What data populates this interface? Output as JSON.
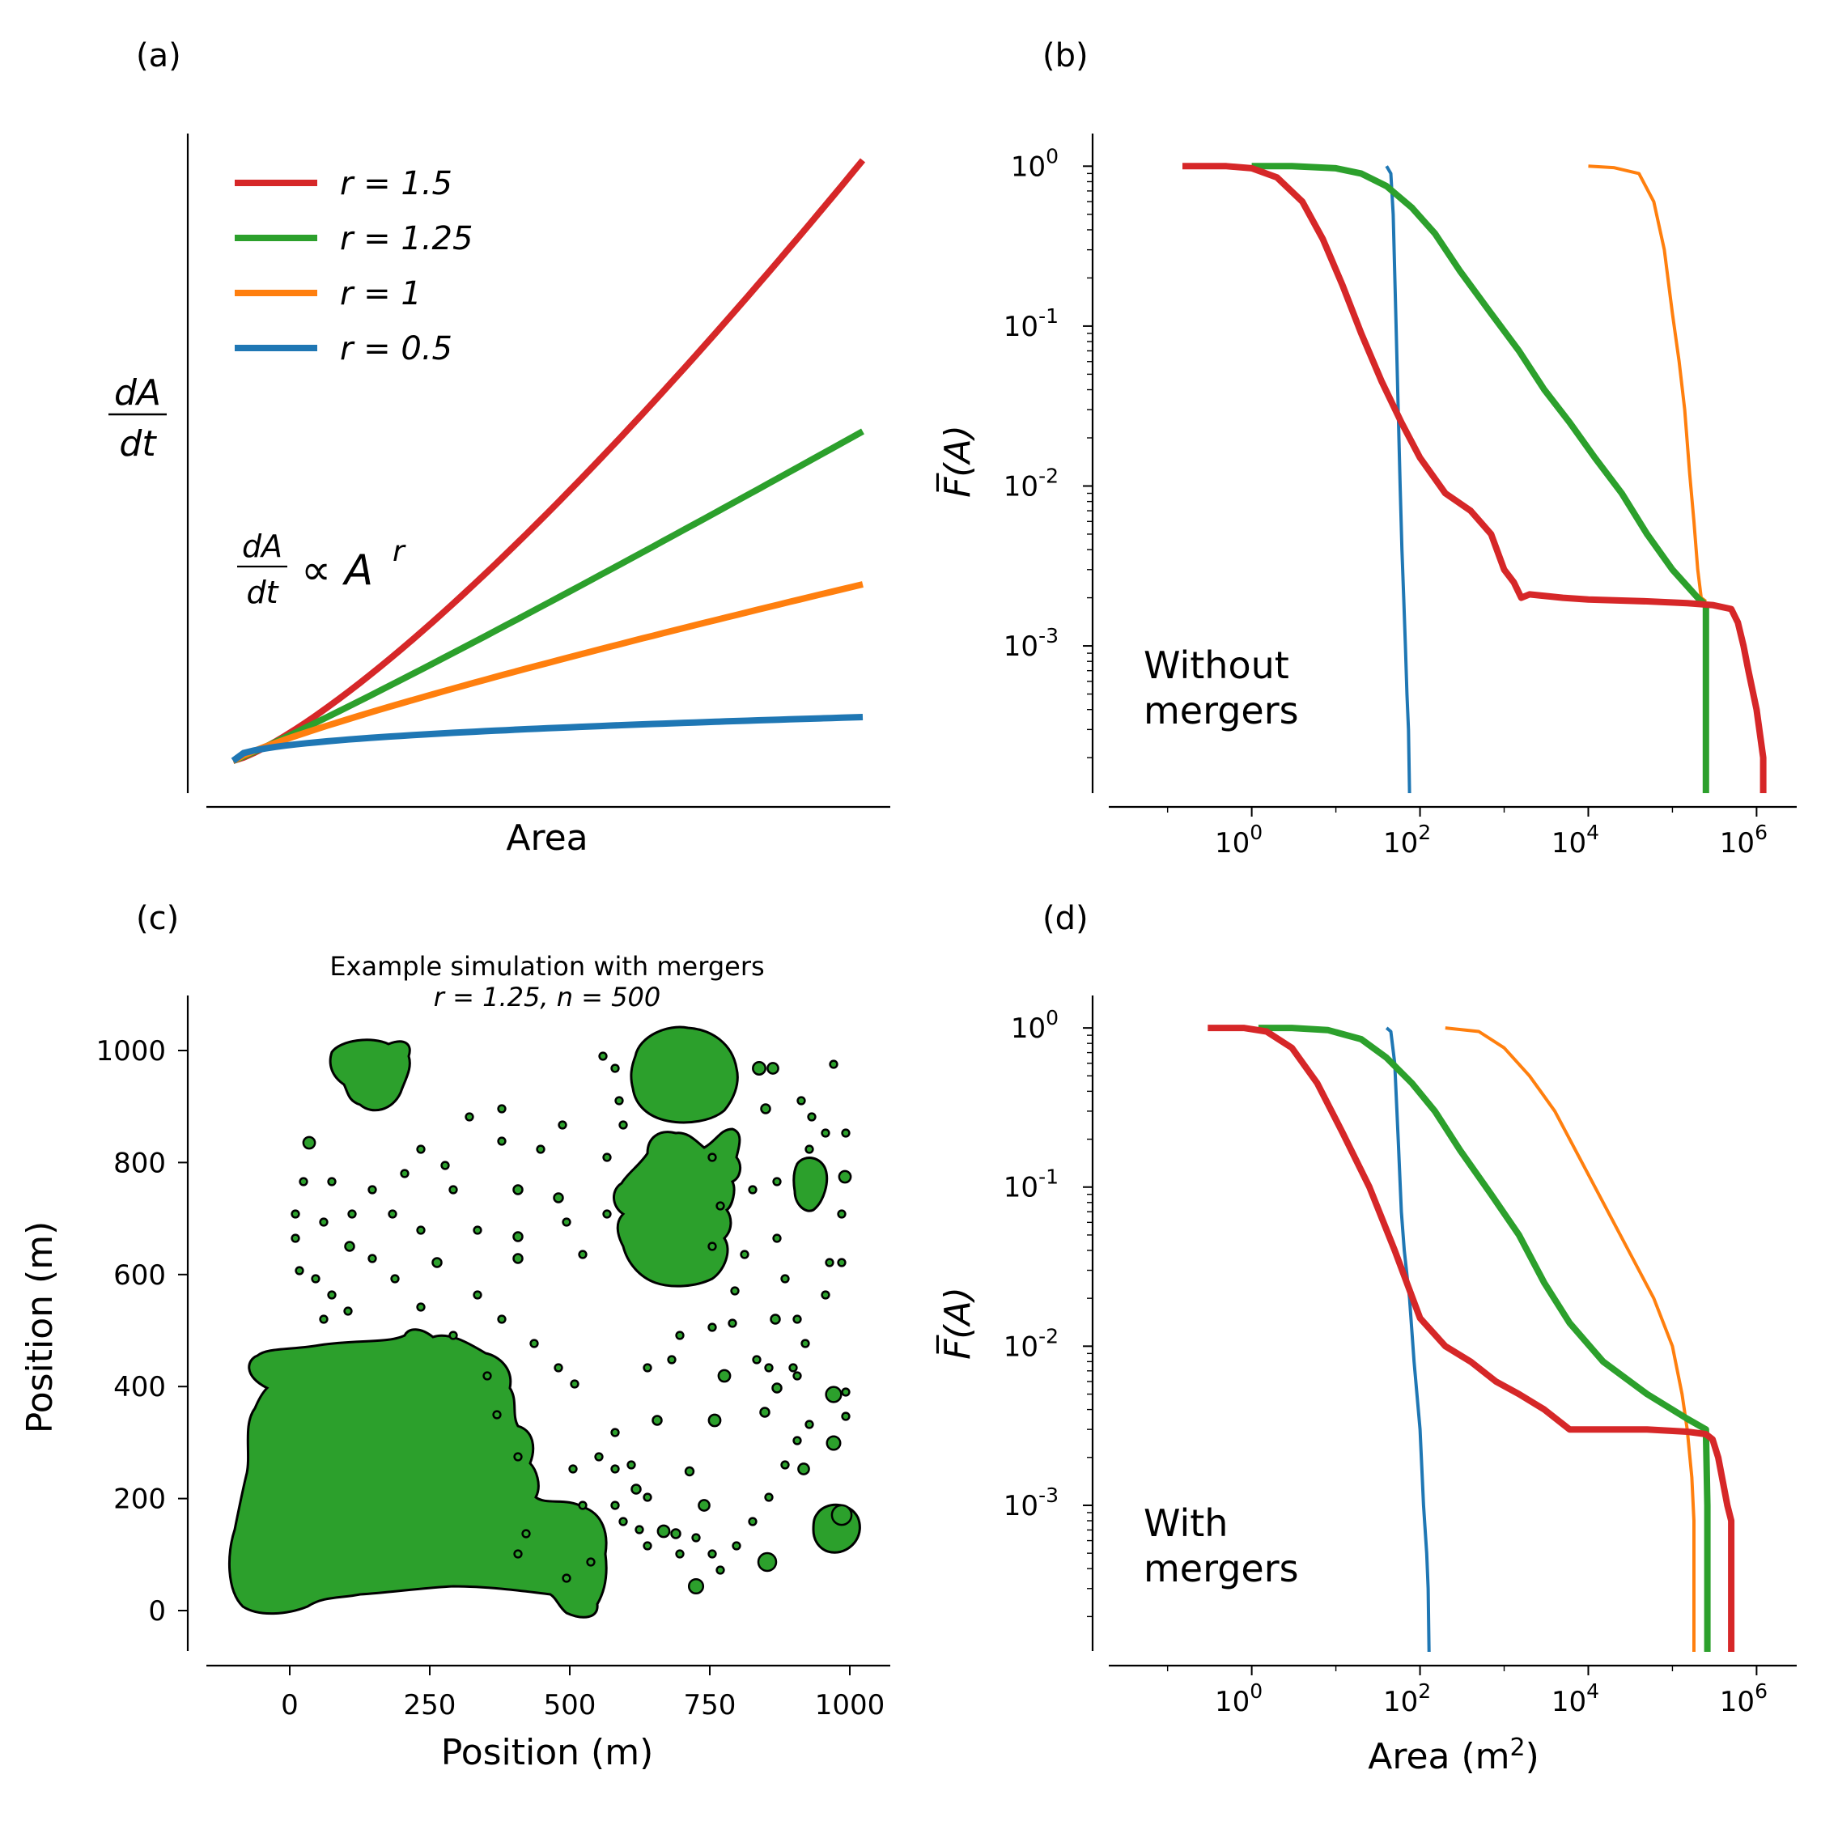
{
  "panel_labels": [
    "(a)",
    "(b)",
    "(c)",
    "(d)"
  ],
  "colors": {
    "r1.5": "#d62728",
    "r1.25": "#2ca02c",
    "r1": "#ff7f0e",
    "r0.5": "#1f77b4"
  },
  "chart_data": [
    {
      "id": "a",
      "type": "line",
      "xlabel": "Area",
      "ylabel_num": "dA",
      "ylabel_den": "dt",
      "formula": {
        "num": "dA",
        "den": "dt",
        "rhs": "∝ A",
        "exp": "r"
      },
      "legend_placement": "top-left",
      "x": [
        0,
        0.1,
        0.2,
        0.3,
        0.4,
        0.5,
        0.6,
        0.7,
        0.8,
        0.9,
        1.0
      ],
      "series": [
        {
          "name": "r = 1.5",
          "key": "r1.5",
          "exponent": 1.5
        },
        {
          "name": "r = 1.25",
          "key": "r1.25",
          "exponent": 1.25
        },
        {
          "name": "r = 1",
          "key": "r1",
          "exponent": 1
        },
        {
          "name": "r = 0.5",
          "key": "r0.5",
          "exponent": 0.5
        }
      ],
      "grid": false
    },
    {
      "id": "b",
      "type": "line",
      "xscale": "log",
      "yscale": "log",
      "xlim": [
        0.02,
        3000000
      ],
      "ylim": [
        0.00012,
        1.6
      ],
      "xticks": [
        "10^0",
        "10^2",
        "10^4",
        "10^6"
      ],
      "yticks": [
        "10^0",
        "10^-1",
        "10^-2",
        "10^-3"
      ],
      "ylabel": "F̅(A)",
      "annotation": [
        "Without",
        "mergers"
      ],
      "series": [
        {
          "key": "r0.5",
          "x": [
            40,
            45,
            48,
            52,
            55,
            58,
            61,
            64,
            67,
            70,
            73,
            75
          ],
          "y": [
            1,
            0.9,
            0.5,
            0.1,
            0.03,
            0.01,
            0.004,
            0.002,
            0.001,
            0.0005,
            0.0003,
            0.00012
          ]
        },
        {
          "key": "r1",
          "x": [
            10000,
            20000,
            40000,
            60000,
            80000,
            100000,
            120000,
            140000,
            160000,
            180000,
            200000,
            220000,
            250000
          ],
          "y": [
            1,
            0.98,
            0.9,
            0.6,
            0.3,
            0.12,
            0.06,
            0.03,
            0.012,
            0.006,
            0.003,
            0.002,
            0.0019
          ]
        },
        {
          "key": "r1.25",
          "x": [
            1,
            3,
            10,
            20,
            40,
            80,
            150,
            300,
            700,
            1500,
            3000,
            6000,
            12000,
            25000,
            50000,
            100000,
            200000,
            250000,
            250000,
            250000
          ],
          "y": [
            1,
            1,
            0.97,
            0.9,
            0.75,
            0.55,
            0.38,
            0.22,
            0.12,
            0.07,
            0.04,
            0.025,
            0.015,
            0.009,
            0.005,
            0.003,
            0.002,
            0.0018,
            0.001,
            0.00012
          ]
        },
        {
          "key": "r1.5",
          "x": [
            0.15,
            0.5,
            1,
            2,
            4,
            7,
            12,
            20,
            35,
            60,
            100,
            200,
            400,
            700,
            1000,
            1300,
            1600,
            2000,
            5000,
            10000,
            50000,
            150000,
            300000,
            500000,
            600000,
            700000,
            800000,
            1000000,
            1200000,
            1200000
          ],
          "y": [
            1,
            1,
            0.97,
            0.85,
            0.6,
            0.35,
            0.18,
            0.09,
            0.045,
            0.025,
            0.015,
            0.009,
            0.007,
            0.005,
            0.003,
            0.0025,
            0.002,
            0.0021,
            0.002,
            0.00195,
            0.0019,
            0.00185,
            0.0018,
            0.0017,
            0.0014,
            0.001,
            0.0007,
            0.0004,
            0.0002,
            0.00012
          ]
        }
      ]
    },
    {
      "id": "c",
      "type": "scatter",
      "title": "Example simulation with mergers",
      "subtitle": "r = 1.25, n = 500",
      "xlabel": "Position (m)",
      "ylabel": "Position (m)",
      "xlim": [
        -150,
        1070
      ],
      "ylim": [
        -70,
        1100
      ],
      "xticks": [
        0,
        250,
        500,
        750,
        1000
      ],
      "yticks": [
        0,
        200,
        400,
        600,
        800,
        1000
      ]
    },
    {
      "id": "d",
      "type": "line",
      "xscale": "log",
      "yscale": "log",
      "xlim": [
        0.02,
        3000000
      ],
      "ylim": [
        0.00012,
        1.6
      ],
      "xticks": [
        "10^0",
        "10^2",
        "10^4",
        "10^6"
      ],
      "yticks": [
        "10^0",
        "10^-1",
        "10^-2",
        "10^-3"
      ],
      "xlabel": "Area (m^2)",
      "ylabel": "F̅(A)",
      "annotation": [
        "With",
        "mergers"
      ],
      "series": [
        {
          "key": "r0.5",
          "x": [
            40,
            45,
            50,
            55,
            60,
            65,
            75,
            85,
            100,
            110,
            120,
            125,
            128
          ],
          "y": [
            1,
            0.95,
            0.6,
            0.2,
            0.07,
            0.04,
            0.02,
            0.008,
            0.003,
            0.001,
            0.0005,
            0.0003,
            0.00012
          ]
        },
        {
          "key": "r1",
          "x": [
            200,
            500,
            1000,
            2000,
            4000,
            8000,
            15000,
            30000,
            60000,
            100000,
            130000,
            150000,
            170000,
            180000,
            180000
          ],
          "y": [
            1,
            0.95,
            0.75,
            0.5,
            0.3,
            0.15,
            0.08,
            0.04,
            0.02,
            0.01,
            0.005,
            0.003,
            0.0015,
            0.0008,
            0.00012
          ]
        },
        {
          "key": "r1.25",
          "x": [
            1.2,
            3,
            8,
            20,
            40,
            80,
            150,
            300,
            700,
            1500,
            3000,
            6000,
            15000,
            50000,
            150000,
            250000,
            260000,
            260000
          ],
          "y": [
            1,
            1,
            0.97,
            0.85,
            0.65,
            0.45,
            0.3,
            0.17,
            0.09,
            0.05,
            0.025,
            0.014,
            0.008,
            0.005,
            0.0035,
            0.003,
            0.001,
            0.00012
          ]
        },
        {
          "key": "r1.5",
          "x": [
            0.3,
            0.8,
            1.5,
            3,
            6,
            12,
            25,
            50,
            100,
            200,
            400,
            800,
            1500,
            3000,
            6000,
            50000,
            150000,
            250000,
            300000,
            350000,
            450000,
            500000,
            500000
          ],
          "y": [
            1,
            1,
            0.95,
            0.75,
            0.45,
            0.22,
            0.1,
            0.04,
            0.015,
            0.01,
            0.008,
            0.006,
            0.005,
            0.004,
            0.003,
            0.003,
            0.0029,
            0.0028,
            0.0026,
            0.002,
            0.001,
            0.0008,
            0.00012
          ]
        }
      ]
    }
  ]
}
